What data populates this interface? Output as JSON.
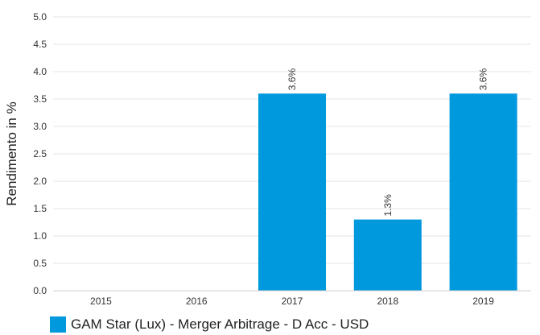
{
  "chart_data": {
    "type": "bar",
    "categories": [
      "2015",
      "2016",
      "2017",
      "2018",
      "2019"
    ],
    "series": [
      {
        "name": "GAM Star (Lux) - Merger Arbitrage - D Acc - USD",
        "values": [
          null,
          null,
          3.6,
          1.3,
          3.6
        ],
        "data_labels": [
          "",
          "",
          "3.6%",
          "1.3%",
          "3.6%"
        ]
      }
    ],
    "ylabel": "Rendimento in %",
    "ylim": [
      0,
      5
    ],
    "yticks": [
      "0.0",
      "0.5",
      "1.0",
      "1.5",
      "2.0",
      "2.5",
      "3.0",
      "3.5",
      "4.0",
      "4.5",
      "5.0"
    ],
    "grid": true,
    "legend_position": "bottom-left",
    "colors": {
      "bar": "#0099dd",
      "grid": "#e6e6e6",
      "axis": "#cccccc"
    }
  }
}
